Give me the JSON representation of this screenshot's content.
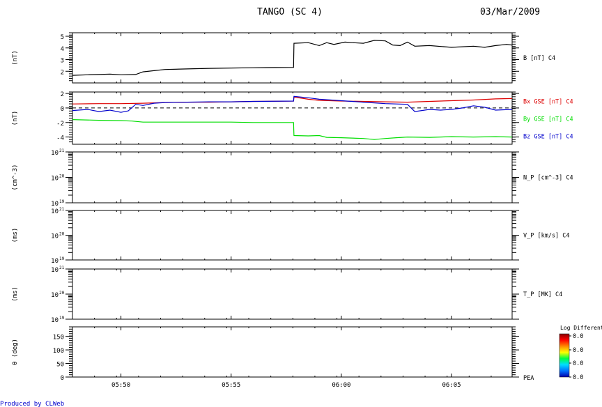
{
  "header": {
    "title": "TANGO (SC 4)",
    "date": "03/Mar/2009"
  },
  "footer": {
    "credit": "Produced by CLWeb"
  },
  "colorbar": {
    "title": "Log Differentia",
    "labels": [
      "0.0",
      "0.0",
      "0.0",
      "0.0"
    ],
    "stops": [
      "#0000aa",
      "#0070ff",
      "#00ddff",
      "#00ff44",
      "#ffff00",
      "#ff8800",
      "#ff0000",
      "#880000"
    ]
  },
  "colors": {
    "black": "#000000",
    "red": "#dd0000",
    "green": "#00dd00",
    "blue": "#0000cc"
  },
  "chart_data": {
    "type": "line",
    "x_range": [
      "05:47:48",
      "06:07:45"
    ],
    "x_ticks": [
      "05:50",
      "05:55",
      "06:00",
      "06:05"
    ],
    "panels": [
      {
        "ylabel": "(nT)",
        "ylim": [
          1,
          5.3
        ],
        "log": false,
        "ticks": [
          {
            "v": 2,
            "label": "2"
          },
          {
            "v": 3,
            "label": "3"
          },
          {
            "v": 4,
            "label": "4"
          },
          {
            "v": 5,
            "label": "5"
          }
        ],
        "series": [
          {
            "name": "B [nT] C4",
            "color": "#000000",
            "points": [
              [
                "05:47:48",
                1.65
              ],
              [
                "05:48:30",
                1.7
              ],
              [
                "05:49:00",
                1.72
              ],
              [
                "05:49:30",
                1.75
              ],
              [
                "05:50:00",
                1.7
              ],
              [
                "05:50:40",
                1.72
              ],
              [
                "05:51:00",
                1.95
              ],
              [
                "05:51:30",
                2.05
              ],
              [
                "05:52:00",
                2.15
              ],
              [
                "05:53:00",
                2.2
              ],
              [
                "05:54:00",
                2.25
              ],
              [
                "05:55:00",
                2.28
              ],
              [
                "05:56:00",
                2.3
              ],
              [
                "05:57:00",
                2.32
              ],
              [
                "05:57:50",
                2.33
              ],
              [
                "05:57:51",
                4.4
              ],
              [
                "05:58:30",
                4.45
              ],
              [
                "05:59:00",
                4.2
              ],
              [
                "05:59:20",
                4.45
              ],
              [
                "05:59:40",
                4.3
              ],
              [
                "06:00:10",
                4.5
              ],
              [
                "06:00:30",
                4.45
              ],
              [
                "06:01:00",
                4.4
              ],
              [
                "06:01:30",
                4.65
              ],
              [
                "06:02:00",
                4.6
              ],
              [
                "06:02:20",
                4.25
              ],
              [
                "06:02:40",
                4.2
              ],
              [
                "06:03:00",
                4.5
              ],
              [
                "06:03:20",
                4.15
              ],
              [
                "06:04:00",
                4.2
              ],
              [
                "06:05:00",
                4.05
              ],
              [
                "06:06:00",
                4.15
              ],
              [
                "06:06:30",
                4.05
              ],
              [
                "06:07:00",
                4.2
              ],
              [
                "06:07:30",
                4.3
              ],
              [
                "06:07:45",
                4.25
              ]
            ]
          }
        ]
      },
      {
        "ylabel": "(nT)",
        "ylim": [
          -5,
          2.2
        ],
        "log": false,
        "zero_line": true,
        "ticks": [
          {
            "v": -4,
            "label": "-4"
          },
          {
            "v": -2,
            "label": "-2"
          },
          {
            "v": 0,
            "label": "0"
          },
          {
            "v": 2,
            "label": "2"
          }
        ],
        "series": [
          {
            "name": "Bx GSE [nT] C4",
            "color": "#dd0000",
            "points": [
              [
                "05:47:48",
                0.55
              ],
              [
                "05:49:00",
                0.6
              ],
              [
                "05:50:00",
                0.6
              ],
              [
                "05:51:00",
                0.65
              ],
              [
                "05:52:00",
                0.75
              ],
              [
                "05:53:00",
                0.8
              ],
              [
                "05:54:00",
                0.8
              ],
              [
                "05:55:00",
                0.85
              ],
              [
                "05:56:00",
                0.9
              ],
              [
                "05:57:50",
                0.95
              ],
              [
                "05:57:51",
                1.5
              ],
              [
                "05:58:30",
                1.2
              ],
              [
                "05:59:00",
                1.05
              ],
              [
                "06:00:00",
                0.95
              ],
              [
                "06:01:00",
                0.9
              ],
              [
                "06:02:00",
                0.85
              ],
              [
                "06:03:00",
                0.8
              ],
              [
                "06:04:00",
                0.9
              ],
              [
                "06:05:00",
                1.0
              ],
              [
                "06:06:00",
                1.1
              ],
              [
                "06:07:00",
                1.25
              ],
              [
                "06:07:45",
                1.3
              ]
            ]
          },
          {
            "name": "By GSE [nT] C4",
            "color": "#00dd00",
            "points": [
              [
                "05:47:48",
                -1.6
              ],
              [
                "05:49:00",
                -1.7
              ],
              [
                "05:50:00",
                -1.75
              ],
              [
                "05:50:30",
                -1.8
              ],
              [
                "05:51:00",
                -1.95
              ],
              [
                "05:52:00",
                -1.95
              ],
              [
                "05:53:00",
                -1.95
              ],
              [
                "05:54:00",
                -1.95
              ],
              [
                "05:55:00",
                -1.95
              ],
              [
                "05:56:00",
                -2.0
              ],
              [
                "05:57:50",
                -2.0
              ],
              [
                "05:57:51",
                -3.8
              ],
              [
                "05:58:30",
                -3.85
              ],
              [
                "05:59:00",
                -3.8
              ],
              [
                "05:59:20",
                -4.05
              ],
              [
                "06:00:00",
                -4.1
              ],
              [
                "06:01:00",
                -4.2
              ],
              [
                "06:01:30",
                -4.35
              ],
              [
                "06:02:00",
                -4.2
              ],
              [
                "06:02:30",
                -4.1
              ],
              [
                "06:03:00",
                -4.0
              ],
              [
                "06:04:00",
                -4.05
              ],
              [
                "06:05:00",
                -3.95
              ],
              [
                "06:06:00",
                -4.0
              ],
              [
                "06:07:00",
                -3.95
              ],
              [
                "06:07:45",
                -4.0
              ]
            ]
          },
          {
            "name": "Bz GSE [nT] C4",
            "color": "#0000cc",
            "points": [
              [
                "05:47:48",
                -0.35
              ],
              [
                "05:48:30",
                -0.2
              ],
              [
                "05:49:00",
                -0.5
              ],
              [
                "05:49:30",
                -0.3
              ],
              [
                "05:50:00",
                -0.6
              ],
              [
                "05:50:20",
                -0.4
              ],
              [
                "05:50:40",
                0.5
              ],
              [
                "05:51:00",
                0.35
              ],
              [
                "05:51:30",
                0.65
              ],
              [
                "05:52:00",
                0.75
              ],
              [
                "05:53:00",
                0.8
              ],
              [
                "05:54:00",
                0.85
              ],
              [
                "05:55:00",
                0.85
              ],
              [
                "05:56:00",
                0.9
              ],
              [
                "05:57:50",
                0.95
              ],
              [
                "05:57:51",
                1.6
              ],
              [
                "05:58:30",
                1.4
              ],
              [
                "05:59:00",
                1.2
              ],
              [
                "06:00:00",
                1.0
              ],
              [
                "06:01:00",
                0.8
              ],
              [
                "06:02:00",
                0.6
              ],
              [
                "06:03:00",
                0.5
              ],
              [
                "06:03:20",
                -0.5
              ],
              [
                "06:04:00",
                -0.2
              ],
              [
                "06:04:30",
                -0.3
              ],
              [
                "06:05:00",
                -0.2
              ],
              [
                "06:05:30",
                0.0
              ],
              [
                "06:06:00",
                0.3
              ],
              [
                "06:06:30",
                0.1
              ],
              [
                "06:07:00",
                -0.3
              ],
              [
                "06:07:45",
                -0.2
              ]
            ]
          }
        ]
      },
      {
        "ylabel": "(cm^-3)",
        "ylim": [
          19,
          21
        ],
        "log": true,
        "ticks": [
          {
            "v": 19,
            "label": "10",
            "exp": "19"
          },
          {
            "v": 20,
            "label": "10",
            "exp": "20"
          },
          {
            "v": 21,
            "label": "10",
            "exp": "21"
          }
        ],
        "series": [
          {
            "name": "N_P [cm^-3] C4",
            "color": "#000000",
            "points": []
          }
        ]
      },
      {
        "ylabel": "(ms)",
        "ylim": [
          19,
          21
        ],
        "log": true,
        "ticks": [
          {
            "v": 19,
            "label": "10",
            "exp": "19"
          },
          {
            "v": 20,
            "label": "10",
            "exp": "20"
          },
          {
            "v": 21,
            "label": "10",
            "exp": "21"
          }
        ],
        "series": [
          {
            "name": "V_P [km/s] C4",
            "color": "#000000",
            "points": []
          }
        ]
      },
      {
        "ylabel": "(ms)",
        "ylim": [
          19,
          21
        ],
        "log": true,
        "ticks": [
          {
            "v": 19,
            "label": "10",
            "exp": "19"
          },
          {
            "v": 20,
            "label": "10",
            "exp": "20"
          },
          {
            "v": 21,
            "label": "10",
            "exp": "21"
          }
        ],
        "series": [
          {
            "name": "T_P [MK] C4",
            "color": "#000000",
            "points": []
          }
        ]
      },
      {
        "ylabel": "θ (deg)",
        "ylim": [
          0,
          185
        ],
        "log": false,
        "ticks": [
          {
            "v": 0,
            "label": "0"
          },
          {
            "v": 50,
            "label": "50"
          },
          {
            "v": 100,
            "label": "100"
          },
          {
            "v": 150,
            "label": "150"
          }
        ],
        "series": [
          {
            "name": "PEA",
            "color": "#000000",
            "points": []
          }
        ]
      }
    ]
  }
}
